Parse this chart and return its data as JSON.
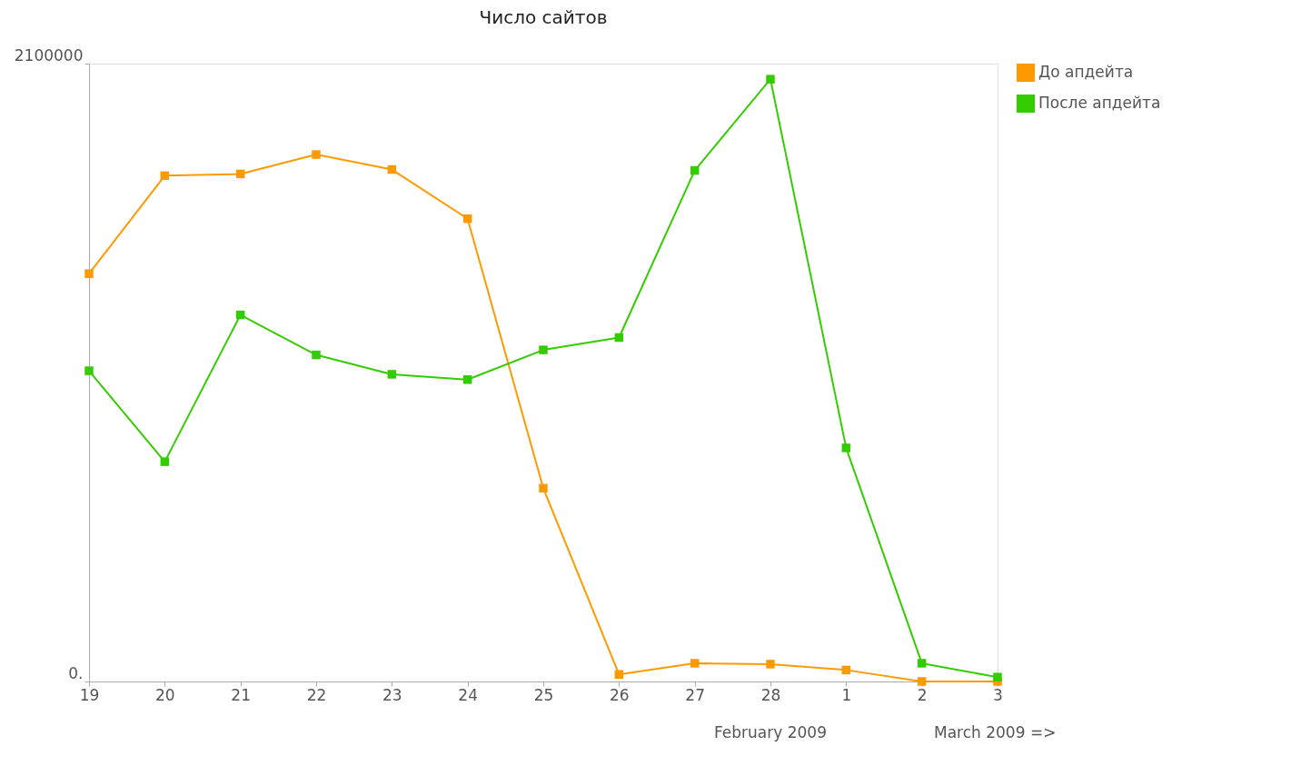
{
  "chart_data": {
    "type": "line",
    "title": "Число сайтов",
    "categories": [
      "19",
      "20",
      "21",
      "22",
      "23",
      "24",
      "25",
      "26",
      "27",
      "28",
      "1",
      "2",
      "3"
    ],
    "series": [
      {
        "name": "До апдейта",
        "color": "#ff9900",
        "values": [
          1386000,
          1719000,
          1725000,
          1791000,
          1740000,
          1573000,
          657000,
          24000,
          62000,
          59000,
          39000,
          0,
          0
        ]
      },
      {
        "name": "После апдейта",
        "color": "#33cc00",
        "values": [
          1056000,
          747000,
          1246000,
          1110000,
          1044000,
          1026000,
          1127000,
          1169000,
          1737000,
          2047000,
          794000,
          62000,
          15000
        ]
      }
    ],
    "ylim": [
      0,
      2100000
    ],
    "yticks": [
      {
        "value": 0,
        "label": "0."
      },
      2100000
    ],
    "annotations": [
      "February 2009",
      "March 2009 =>"
    ],
    "grid": false,
    "legend": "right",
    "marker": "square",
    "line_style": "solid"
  }
}
